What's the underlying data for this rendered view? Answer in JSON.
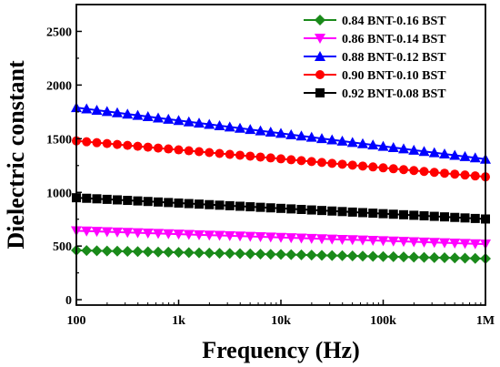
{
  "chart_data": {
    "type": "line",
    "xlabel": "Frequency (Hz)",
    "ylabel": "Dielectric constant",
    "x_scale": "log",
    "xlim": [
      100,
      1000000
    ],
    "ylim": [
      -50,
      2750
    ],
    "x_ticks": [
      {
        "value": 100,
        "label": "100"
      },
      {
        "value": 1000,
        "label": "1k"
      },
      {
        "value": 10000,
        "label": "10k"
      },
      {
        "value": 100000,
        "label": "100k"
      },
      {
        "value": 1000000,
        "label": "1M"
      }
    ],
    "y_ticks": [
      0,
      500,
      1000,
      1500,
      2000,
      2500
    ],
    "grid": false,
    "legend_position": "top-right",
    "series": [
      {
        "name": "0.84 BNT-0.16 BST",
        "color": "#1a8a1a",
        "marker": "diamond",
        "start": 460,
        "end": 383
      },
      {
        "name": "0.86 BNT-0.14 BST",
        "color": "#ff00ff",
        "marker": "triangle-down",
        "start": 642,
        "end": 518
      },
      {
        "name": "0.88 BNT-0.12 BST",
        "color": "#0000ff",
        "marker": "triangle-up",
        "start": 1790,
        "end": 1310
      },
      {
        "name": "0.90 BNT-0.10 BST",
        "color": "#ff0000",
        "marker": "circle",
        "start": 1480,
        "end": 1145
      },
      {
        "name": "0.92 BNT-0.08 BST",
        "color": "#000000",
        "marker": "square",
        "start": 950,
        "end": 752
      }
    ],
    "points_per_series": 41
  }
}
